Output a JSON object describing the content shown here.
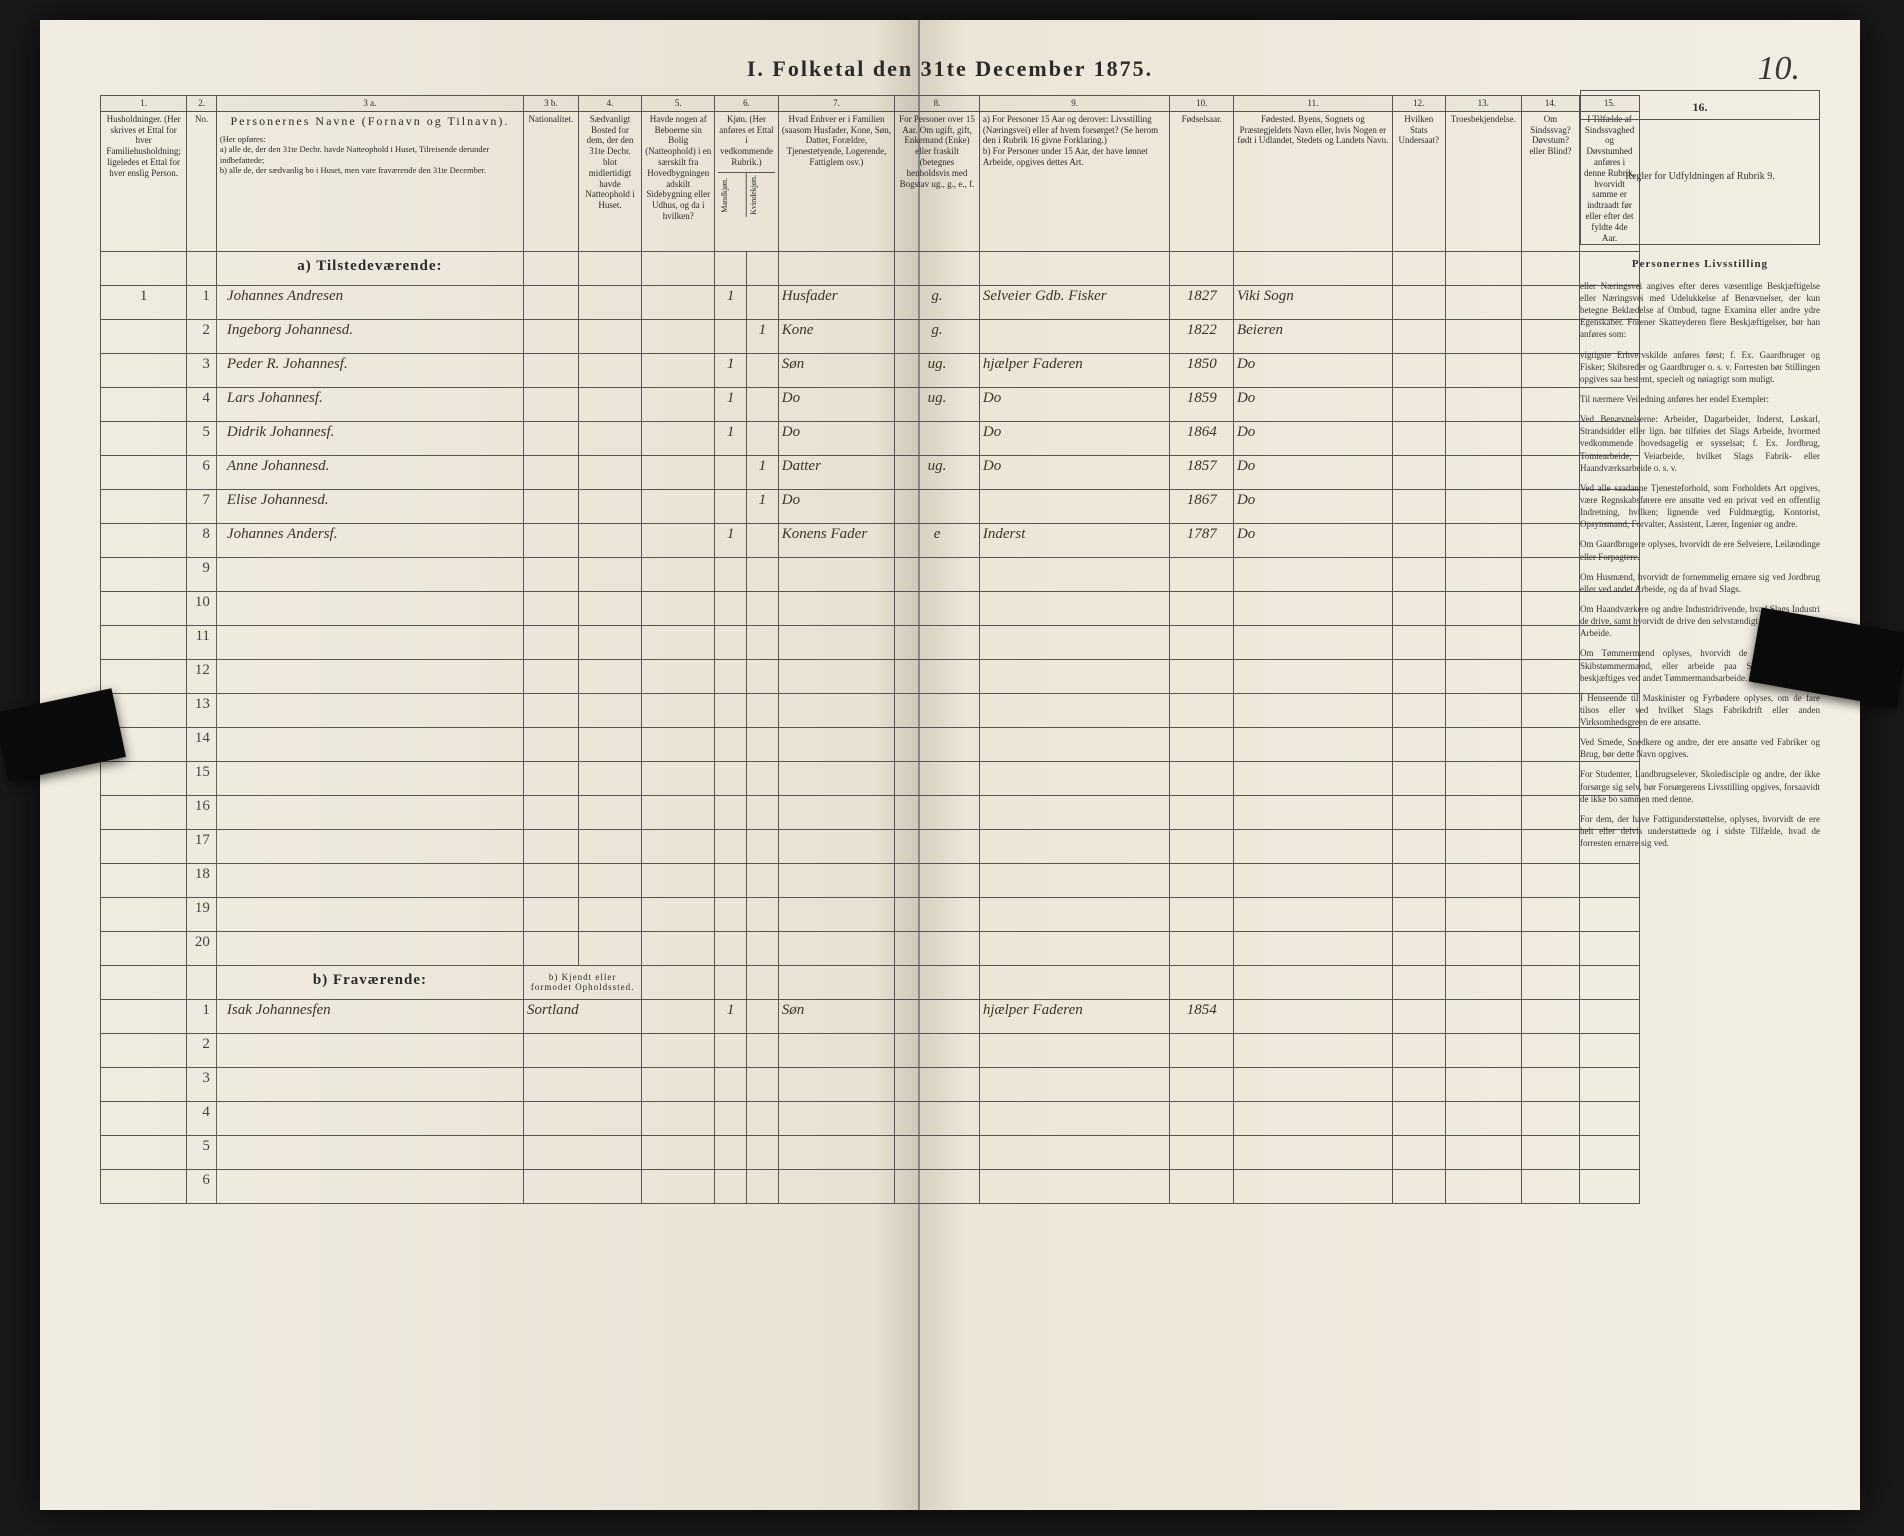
{
  "document": {
    "title": "I.  Folketal den 31te December 1875.",
    "page_number": "10."
  },
  "column_numbers": [
    "1.",
    "2.",
    "3 a.",
    "3 b.",
    "4.",
    "5.",
    "6.",
    "7.",
    "8.",
    "9.",
    "10.",
    "11.",
    "12.",
    "13.",
    "14.",
    "15.",
    "16."
  ],
  "headers": {
    "c1": "Husholdninger. (Her skrives et Ettal for hver Familiehusholdning; ligeledes et Ettal for hver enslig Person.",
    "c2": "No.",
    "c3a_title": "Personernes Navne (Fornavn og Tilnavn).",
    "c3a_sub": "(Her opføres:\na) alle de, der den 31te Decbr. havde Natteophold i Huset, Tilreisende derunder indbefattede;\nb) alle de, der sædvanlig bo i Huset, men vare fraværende den 31te December.",
    "c3b": "Nationalitet.",
    "c4": "Sædvanligt Bosted for dem, der den 31te Decbr. blot midlertidigt havde Natteophold i Huset.",
    "c5": "Havde nogen af Beboerne sin Bolig (Natteophold) i en særskilt fra Hovedbygningen adskilt Sidebygning eller Udhus, og da i hvilken?",
    "c6": "Kjøn. (Her anføres et Ettal i vedkommende Rubrik.)",
    "c6a": "Mandkjøn.",
    "c6b": "Kvindekjøn.",
    "c7": "Hvad Enhver er i Familien (saasom Husfader, Kone, Søn, Datter, Forældre, Tjenestetyende, Logerende, Fattiglem osv.)",
    "c8": "For Personer over 15 Aar. Om ugift, gift, Enkemand (Enke) eller fraskilt (betegnes henholdsvis med Bogstav ug., g., e., f.",
    "c9": "a) For Personer 15 Aar og derover: Livsstilling (Næringsvei) eller af hvem forsørget? (Se herom den i Rubrik 16 givne Forklaring.)\nb) For Personer under 15 Aar, der have lønnet Arbeide, opgives dettes Art.",
    "c10": "Fødselsaar.",
    "c11": "Fødested. Byens, Sognets og Præstegjeldets Navn eller, hvis Nogen er født i Udlandet, Stedets og Landets Navn.",
    "c12": "Hvilken Stats Undersaat?",
    "c13": "Troesbekjendelse.",
    "c14": "Om Sindssvag? Døvstum? eller Blind?",
    "c15": "I Tilfælde af Sindssvaghed og Døvstumhed anføres i denne Rubrik, hvorvidt samme er indtraadt før eller efter det fyldte 4de Aar.",
    "c16": "Regler for Udfyldningen af Rubrik 9."
  },
  "sections": {
    "present": "a) Tilstedeværende:",
    "absent": "b) Fraværende:",
    "absent_col": "b) Kjendt eller formodet Opholdssted."
  },
  "present_rows": [
    {
      "hh": "1",
      "n": "1",
      "name": "Johannes Andresen",
      "m": "1",
      "f": "",
      "rel": "Husfader",
      "ms": "g.",
      "occ": "Selveier Gdb. Fisker",
      "year": "1827",
      "place": "Viki Sogn"
    },
    {
      "hh": "",
      "n": "2",
      "name": "Ingeborg Johannesd.",
      "m": "",
      "f": "1",
      "rel": "Kone",
      "ms": "g.",
      "occ": "",
      "year": "1822",
      "place": "Beieren"
    },
    {
      "hh": "",
      "n": "3",
      "name": "Peder R. Johannesf.",
      "m": "1",
      "f": "",
      "rel": "Søn",
      "ms": "ug.",
      "occ": "hjælper Faderen",
      "year": "1850",
      "place": "Do"
    },
    {
      "hh": "",
      "n": "4",
      "name": "Lars Johannesf.",
      "m": "1",
      "f": "",
      "rel": "Do",
      "ms": "ug.",
      "occ": "Do",
      "year": "1859",
      "place": "Do"
    },
    {
      "hh": "",
      "n": "5",
      "name": "Didrik Johannesf.",
      "m": "1",
      "f": "",
      "rel": "Do",
      "ms": "",
      "occ": "Do",
      "year": "1864",
      "place": "Do"
    },
    {
      "hh": "",
      "n": "6",
      "name": "Anne Johannesd.",
      "m": "",
      "f": "1",
      "rel": "Datter",
      "ms": "ug.",
      "occ": "Do",
      "year": "1857",
      "place": "Do"
    },
    {
      "hh": "",
      "n": "7",
      "name": "Elise Johannesd.",
      "m": "",
      "f": "1",
      "rel": "Do",
      "ms": "",
      "occ": "",
      "year": "1867",
      "place": "Do"
    },
    {
      "hh": "",
      "n": "8",
      "name": "Johannes Andersf.",
      "m": "1",
      "f": "",
      "rel": "Konens Fader",
      "ms": "e",
      "occ": "Inderst",
      "year": "1787",
      "place": "Do"
    }
  ],
  "present_empty": [
    "9",
    "10",
    "11",
    "12",
    "13",
    "14",
    "15",
    "16",
    "17",
    "18",
    "19",
    "20"
  ],
  "absent_rows": [
    {
      "n": "1",
      "name": "Isak Johannesfen",
      "place_col": "Sortland",
      "m": "1",
      "f": "",
      "rel": "Søn",
      "ms": "",
      "occ": "hjælper Faderen",
      "year": "1854",
      "place": ""
    }
  ],
  "absent_empty": [
    "2",
    "3",
    "4",
    "5",
    "6"
  ],
  "side_text": {
    "title": "Personernes Livsstilling",
    "p1": "eller Næringsvei angives efter deres væsentlige Beskjæftigelse eller Næringsvei med Udelukkelse af Benævnelser, der kun betegne Beklædelse af Ombud, tagne Examina eller andre ydre Egenskaber. Forener Skatteyderen flere Beskjæftigelser, bør han anføres som:",
    "p2": "vigtigste Erhvervskilde anføres først; f. Ex. Gaardbruger og Fisker; Skibsreder og Gaardbruger o. s. v. Forresten bør Stillingen opgives saa bestemt, specielt og nøiagtigt som muligt.",
    "p3": "Til nærmere Veiledning anføres her endel Exempler:",
    "p4": "Ved Benævnelserne: Arbeider, Dagarbeider, Inderst, Løskarl, Strandsidder eller lign. bør tilføies det Slags Arbeide, hvormed vedkommende hovedsagelig er sysselsat; f. Ex. Jordbrug, Tomtearbeide, Veiarbeide, hvilket Slags Fabrik- eller Haandværksarbeide o. s. v.",
    "p5": "Ved alle saadanne Tjenesteforhold, som Forholdets Art opgives, være Regnskabsførere ere ansatte ved en privat ved en offentlig Indretning, hvilken; lignende ved Fuldmægtig, Kontorist, Opsynsmand, Forvalter, Assistent, Lærer, Ingeniør og andre.",
    "p6": "Om Gaardbrugere oplyses, hvorvidt de ere Selveiere, Leilændinge eller Forpagtere.",
    "p7": "Om Husmænd, hvorvidt de fornemmelig ernære sig ved Jordbrug eller ved andet Arbeide, og da af hvad Slags.",
    "p8": "Om Haandværkere og andre Industridrivende, hvad Slags Industri de drive, samt hvorvidt de drive den selvstændigt eller ere i andres Arbeide.",
    "p9": "Om Tømmermænd oplyses, hvorvidt de fare tilsos som Skibstømmermænd, eller arbeide paa Skibsværfter, eller beskjæftiges ved andet Tømmermandsarbeide.",
    "p10": "I Henseende til Maskinister og Fyrbødere oplyses, om de fare tilsos eller ved hvilket Slags Fabrikdrift eller anden Virksomhedsgreen de ere ansatte.",
    "p11": "Ved Smede, Snedkere og andre, der ere ansatte ved Fabriker og Brug, bør dette Navn opgives.",
    "p12": "For Studenter, Landbrugselever, Skoledisciple og andre, der ikke forsørge sig selv, bør Forsørgerens Livsstilling opgives, forsaavidt de ikke bo sammen med denne.",
    "p13": "For dem, der have Fattigunderstøttelse, oplyses, hvorvidt de ere helt eller delvis understøttede og i sidste Tilfælde, hvad de forresten ernære sig ved."
  },
  "colors": {
    "paper": "#f4f0e6",
    "ink": "#2a2a2a",
    "handwriting": "#3a3528",
    "rule": "#555"
  }
}
